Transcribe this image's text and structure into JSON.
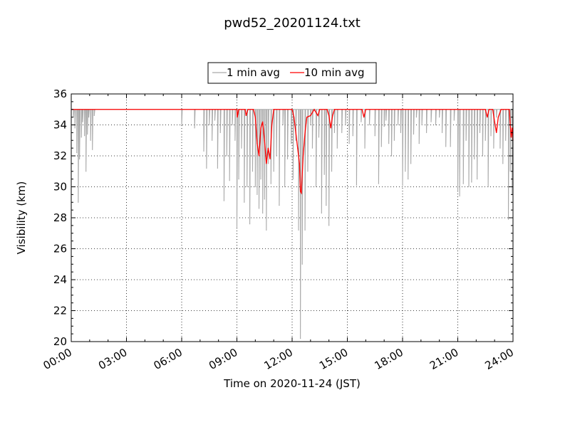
{
  "chart_data": {
    "type": "line",
    "title": "pwd52_20201124.txt",
    "xlabel": "Time on 2020-11-24 (JST)",
    "ylabel": "Visibility (km)",
    "xlim": [
      0,
      24
    ],
    "ylim": [
      20,
      36
    ],
    "x_ticks": [
      {
        "value": 0,
        "label": "00:00"
      },
      {
        "value": 3,
        "label": "03:00"
      },
      {
        "value": 6,
        "label": "06:00"
      },
      {
        "value": 9,
        "label": "09:00"
      },
      {
        "value": 12,
        "label": "12:00"
      },
      {
        "value": 15,
        "label": "15:00"
      },
      {
        "value": 18,
        "label": "18:00"
      },
      {
        "value": 21,
        "label": "21:00"
      },
      {
        "value": 24,
        "label": "24:00"
      }
    ],
    "y_ticks": [
      {
        "value": 20,
        "label": "20"
      },
      {
        "value": 22,
        "label": "22"
      },
      {
        "value": 24,
        "label": "24"
      },
      {
        "value": 26,
        "label": "26"
      },
      {
        "value": 28,
        "label": "28"
      },
      {
        "value": 30,
        "label": "30"
      },
      {
        "value": 32,
        "label": "32"
      },
      {
        "value": 34,
        "label": "34"
      },
      {
        "value": 36,
        "label": "36"
      }
    ],
    "grid": true,
    "legend_position": "top-center",
    "baseline": 35,
    "series": [
      {
        "name": "1 min avg",
        "color": "#a9a9a9",
        "dips": [
          [
            0.12,
            34.5
          ],
          [
            0.2,
            33.8
          ],
          [
            0.3,
            32.2
          ],
          [
            0.38,
            29.0
          ],
          [
            0.45,
            31.8
          ],
          [
            0.55,
            33.2
          ],
          [
            0.62,
            34.2
          ],
          [
            0.72,
            33.3
          ],
          [
            0.8,
            31.0
          ],
          [
            0.88,
            33.4
          ],
          [
            0.95,
            34.5
          ],
          [
            1.05,
            33.0
          ],
          [
            1.15,
            32.4
          ],
          [
            1.25,
            34.6
          ],
          [
            6.0,
            34.0
          ],
          [
            6.7,
            33.8
          ],
          [
            7.2,
            32.3
          ],
          [
            7.35,
            31.2
          ],
          [
            7.5,
            34.0
          ],
          [
            7.65,
            33.0
          ],
          [
            7.8,
            34.3
          ],
          [
            7.95,
            31.2
          ],
          [
            8.1,
            33.5
          ],
          [
            8.3,
            29.1
          ],
          [
            8.45,
            32.0
          ],
          [
            8.6,
            30.4
          ],
          [
            8.75,
            34.0
          ],
          [
            8.9,
            33.0
          ],
          [
            9.0,
            27.4
          ],
          [
            9.1,
            30.5
          ],
          [
            9.25,
            32.5
          ],
          [
            9.4,
            29.0
          ],
          [
            9.55,
            30.0
          ],
          [
            9.7,
            27.6
          ],
          [
            9.85,
            31.0
          ],
          [
            10.0,
            30.0
          ],
          [
            10.1,
            29.5
          ],
          [
            10.2,
            28.6
          ],
          [
            10.3,
            30.5
          ],
          [
            10.4,
            28.3
          ],
          [
            10.5,
            29.2
          ],
          [
            10.6,
            27.2
          ],
          [
            10.7,
            31.5
          ],
          [
            10.85,
            30.2
          ],
          [
            11.0,
            31.0
          ],
          [
            11.15,
            32.0
          ],
          [
            11.3,
            28.8
          ],
          [
            11.5,
            34.0
          ],
          [
            11.6,
            30.0
          ],
          [
            11.75,
            31.8
          ],
          [
            11.95,
            32.8
          ],
          [
            12.05,
            30.5
          ],
          [
            12.2,
            33.0
          ],
          [
            12.35,
            27.2
          ],
          [
            12.45,
            20.2
          ],
          [
            12.55,
            25.0
          ],
          [
            12.7,
            27.2
          ],
          [
            12.85,
            31.0
          ],
          [
            13.0,
            34.0
          ],
          [
            13.1,
            32.5
          ],
          [
            13.3,
            30.0
          ],
          [
            13.45,
            33.2
          ],
          [
            13.6,
            28.3
          ],
          [
            13.75,
            30.8
          ],
          [
            13.85,
            28.8
          ],
          [
            14.0,
            27.5
          ],
          [
            14.15,
            31.0
          ],
          [
            14.3,
            33.5
          ],
          [
            14.45,
            32.5
          ],
          [
            14.7,
            33.5
          ],
          [
            14.9,
            34.0
          ],
          [
            15.1,
            32.8
          ],
          [
            15.3,
            33.3
          ],
          [
            15.5,
            30.1
          ],
          [
            15.75,
            34.2
          ],
          [
            15.95,
            32.5
          ],
          [
            16.2,
            34.0
          ],
          [
            16.5,
            33.3
          ],
          [
            16.7,
            30.2
          ],
          [
            16.85,
            32.6
          ],
          [
            17.0,
            33.9
          ],
          [
            17.1,
            34.3
          ],
          [
            17.25,
            32.8
          ],
          [
            17.4,
            32.0
          ],
          [
            17.55,
            33.0
          ],
          [
            17.75,
            34.0
          ],
          [
            17.9,
            33.5
          ],
          [
            18.0,
            30.1
          ],
          [
            18.15,
            31.0
          ],
          [
            18.3,
            30.5
          ],
          [
            18.45,
            31.5
          ],
          [
            18.6,
            33.4
          ],
          [
            18.75,
            34.5
          ],
          [
            18.9,
            32.8
          ],
          [
            19.05,
            34.0
          ],
          [
            19.3,
            33.5
          ],
          [
            19.55,
            34.2
          ],
          [
            19.8,
            34.0
          ],
          [
            20.0,
            34.5
          ],
          [
            20.15,
            33.5
          ],
          [
            20.35,
            32.6
          ],
          [
            20.6,
            32.6
          ],
          [
            20.8,
            34.3
          ],
          [
            21.0,
            29.8
          ],
          [
            21.1,
            29.4
          ],
          [
            21.3,
            30.2
          ],
          [
            21.45,
            33.0
          ],
          [
            21.6,
            30.0
          ],
          [
            21.75,
            30.3
          ],
          [
            21.9,
            31.8
          ],
          [
            22.05,
            30.5
          ],
          [
            22.2,
            33.5
          ],
          [
            22.35,
            32.0
          ],
          [
            22.5,
            33.0
          ],
          [
            22.65,
            30.0
          ],
          [
            22.8,
            33.3
          ],
          [
            22.95,
            32.5
          ],
          [
            23.1,
            34.5
          ],
          [
            23.3,
            32.5
          ],
          [
            23.45,
            31.5
          ],
          [
            23.6,
            33.0
          ],
          [
            23.75,
            27.9
          ],
          [
            23.85,
            31.0
          ],
          [
            23.95,
            29.5
          ]
        ]
      },
      {
        "name": "10 min avg",
        "color": "#ff0000",
        "points": [
          [
            0,
            35
          ],
          [
            9.0,
            35
          ],
          [
            9.02,
            34.5
          ],
          [
            9.1,
            35
          ],
          [
            9.45,
            35
          ],
          [
            9.5,
            34.6
          ],
          [
            9.6,
            35
          ],
          [
            9.9,
            35
          ],
          [
            10.0,
            34.5
          ],
          [
            10.1,
            32.8
          ],
          [
            10.2,
            32.0
          ],
          [
            10.3,
            33.8
          ],
          [
            10.4,
            34.2
          ],
          [
            10.5,
            33.0
          ],
          [
            10.6,
            31.5
          ],
          [
            10.7,
            32.5
          ],
          [
            10.8,
            31.8
          ],
          [
            10.9,
            34.0
          ],
          [
            11.0,
            35
          ],
          [
            12.0,
            35
          ],
          [
            12.1,
            34.5
          ],
          [
            12.2,
            33.5
          ],
          [
            12.3,
            32.5
          ],
          [
            12.4,
            31.5
          ],
          [
            12.45,
            29.7
          ],
          [
            12.5,
            29.6
          ],
          [
            12.6,
            32.0
          ],
          [
            12.7,
            33.5
          ],
          [
            12.8,
            34.5
          ],
          [
            13.0,
            34.6
          ],
          [
            13.2,
            35
          ],
          [
            13.4,
            34.6
          ],
          [
            13.5,
            35
          ],
          [
            13.9,
            35
          ],
          [
            14.0,
            34.6
          ],
          [
            14.1,
            33.8
          ],
          [
            14.2,
            34.6
          ],
          [
            14.3,
            35
          ],
          [
            15.8,
            35
          ],
          [
            15.9,
            34.5
          ],
          [
            16.0,
            35
          ],
          [
            22.5,
            35
          ],
          [
            22.6,
            34.5
          ],
          [
            22.7,
            35
          ],
          [
            22.9,
            35
          ],
          [
            23.0,
            34.2
          ],
          [
            23.1,
            33.5
          ],
          [
            23.2,
            34.5
          ],
          [
            23.35,
            35
          ],
          [
            23.8,
            35
          ],
          [
            23.85,
            34.0
          ],
          [
            23.9,
            33.2
          ],
          [
            23.95,
            33.8
          ],
          [
            24.0,
            33.0
          ]
        ]
      }
    ]
  }
}
